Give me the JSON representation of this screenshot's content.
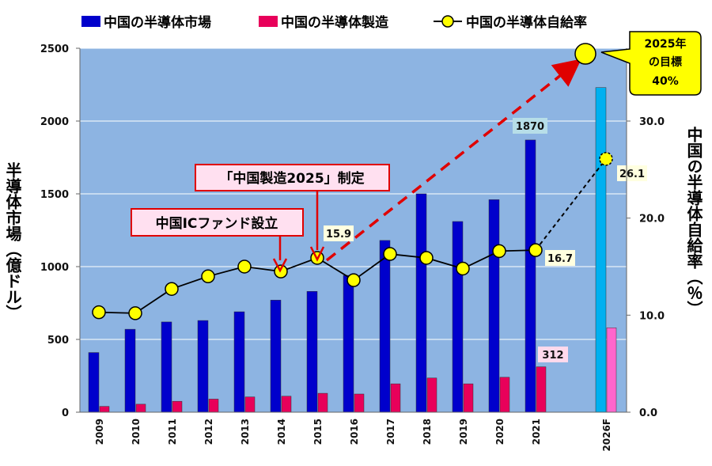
{
  "chart_data": {
    "type": "bar+line",
    "categories": [
      "2009",
      "2010",
      "2011",
      "2012",
      "2013",
      "2014",
      "2015",
      "2016",
      "2017",
      "2018",
      "2019",
      "2020",
      "2021",
      "2026F"
    ],
    "series": [
      {
        "name": "中国の半導体市場",
        "axis": "left",
        "kind": "bar",
        "values": [
          410,
          570,
          620,
          630,
          690,
          770,
          830,
          940,
          1180,
          1500,
          1310,
          1460,
          1870,
          2230
        ]
      },
      {
        "name": "中国の半導体製造",
        "axis": "left",
        "kind": "bar",
        "values": [
          40,
          55,
          75,
          90,
          105,
          110,
          130,
          125,
          195,
          235,
          195,
          240,
          312,
          580
        ]
      },
      {
        "name": "中国の半導体自給率",
        "axis": "right",
        "kind": "line",
        "values": [
          10.3,
          10.2,
          12.7,
          14.0,
          15.0,
          14.5,
          15.9,
          13.6,
          16.3,
          15.9,
          14.8,
          16.6,
          16.7,
          26.1
        ]
      }
    ],
    "left_ylim": [
      0,
      2500
    ],
    "left_yticks": [
      "0",
      "500",
      "1000",
      "1500",
      "2000",
      "2500"
    ],
    "right_ylim": [
      0,
      37.5
    ],
    "right_yticks": [
      "0.0",
      "10.0",
      "20.0",
      "30.0"
    ],
    "left_ylabel": "半導体市場（億ドル）",
    "right_ylabel": "中国の半導体自給率（％）",
    "data_labels": {
      "market_2021": "1870",
      "production_2021": "312",
      "ratio_2015": "15.9",
      "ratio_2021": "16.7",
      "ratio_2026F": "26.1"
    },
    "target": {
      "lines": [
        "2025年",
        "の目標",
        "40%"
      ],
      "value": 40
    },
    "annotations": [
      {
        "text": "「中国製造2025」制定",
        "category": "2015"
      },
      {
        "text": "中国ICファンド設立",
        "category": "2014"
      }
    ],
    "colors": {
      "plot_bg": "#8DB4E2",
      "market": "#0000CC",
      "market_forecast": "#00B0F0",
      "production": "#E8005A",
      "production_forecast": "#FF66CC",
      "marker": "#FFFF00",
      "arrow_red": "#E00000",
      "annotation_bg": "#FFE0F0",
      "target_bg": "#FFFF00",
      "label_blue_bg": "#B7DEE8",
      "label_pink_bg": "#FFD9EC",
      "label_yellow_bg": "#FFFFE0"
    }
  }
}
